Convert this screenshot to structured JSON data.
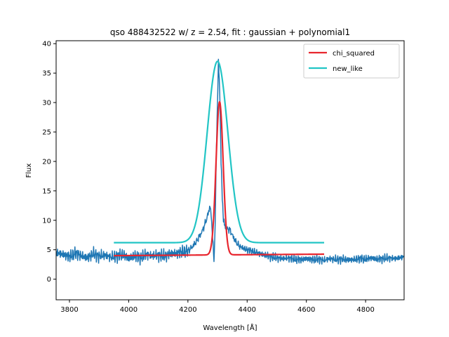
{
  "chart_data": {
    "type": "line",
    "title": "qso 488432522 w/ z = 2.54, fit : gaussian + polynomial1",
    "xlabel": "Wavelength [Å]",
    "ylabel": "Flux",
    "xlim": [
      3755,
      4930
    ],
    "ylim": [
      -3.5,
      40.5
    ],
    "xticks": [
      3800,
      4000,
      4200,
      4400,
      4600,
      4800
    ],
    "yticks": [
      0,
      5,
      10,
      15,
      20,
      25,
      30,
      35,
      40
    ],
    "grid": false,
    "legend_position": "top-right",
    "series": [
      {
        "name": "",
        "color": "#1f77b4",
        "kind": "spectrum",
        "x": [
          3755,
          3780,
          3800,
          3820,
          3840,
          3860,
          3880,
          3900,
          3920,
          3940,
          3960,
          3980,
          4000,
          4020,
          4040,
          4060,
          4080,
          4100,
          4120,
          4140,
          4160,
          4180,
          4200,
          4215,
          4230,
          4245,
          4255,
          4265,
          4275,
          4282,
          4288,
          4292,
          4296,
          4300,
          4303,
          4306,
          4309,
          4312,
          4316,
          4320,
          4325,
          4330,
          4340,
          4350,
          4360,
          4370,
          4380,
          4400,
          4420,
          4440,
          4460,
          4480,
          4500,
          4520,
          4540,
          4560,
          4580,
          4600,
          4620,
          4640,
          4660,
          4680,
          4700,
          4720,
          4740,
          4760,
          4780,
          4800,
          4820,
          4840,
          4860,
          4880,
          4900,
          4930
        ],
        "y": [
          4.5,
          4.2,
          3.8,
          4.4,
          4.0,
          3.6,
          4.3,
          3.9,
          4.1,
          3.7,
          3.9,
          4.2,
          3.5,
          4.0,
          3.6,
          4.2,
          4.0,
          4.1,
          3.9,
          4.3,
          4.4,
          4.6,
          4.8,
          5.5,
          6.5,
          7.8,
          9.0,
          10.5,
          12.5,
          8.5,
          3.0,
          9.0,
          22.0,
          30.0,
          37.0,
          34.0,
          28.0,
          20.0,
          14.0,
          10.0,
          9.0,
          8.5,
          8.5,
          7.5,
          6.5,
          5.8,
          5.4,
          5.0,
          4.7,
          4.4,
          4.1,
          3.8,
          3.6,
          3.5,
          3.6,
          3.4,
          3.3,
          3.5,
          3.3,
          3.4,
          3.2,
          3.5,
          3.3,
          3.4,
          3.3,
          3.3,
          3.5,
          3.4,
          3.6,
          3.4,
          3.5,
          3.6,
          3.5,
          3.8
        ]
      },
      {
        "name": "chi_squared",
        "color": "#e8262e",
        "kind": "gaussian",
        "x_range": [
          3950,
          4660
        ],
        "baseline": 4.0,
        "amplitude": 26.0,
        "center": 4307,
        "sigma": 12,
        "baseline_end": 4.25
      },
      {
        "name": "new_like",
        "color": "#22c5c5",
        "kind": "gaussian",
        "x_range": [
          3950,
          4660
        ],
        "baseline": 6.2,
        "amplitude": 30.8,
        "center": 4300,
        "sigma": 35,
        "baseline_end": 6.2
      }
    ]
  }
}
